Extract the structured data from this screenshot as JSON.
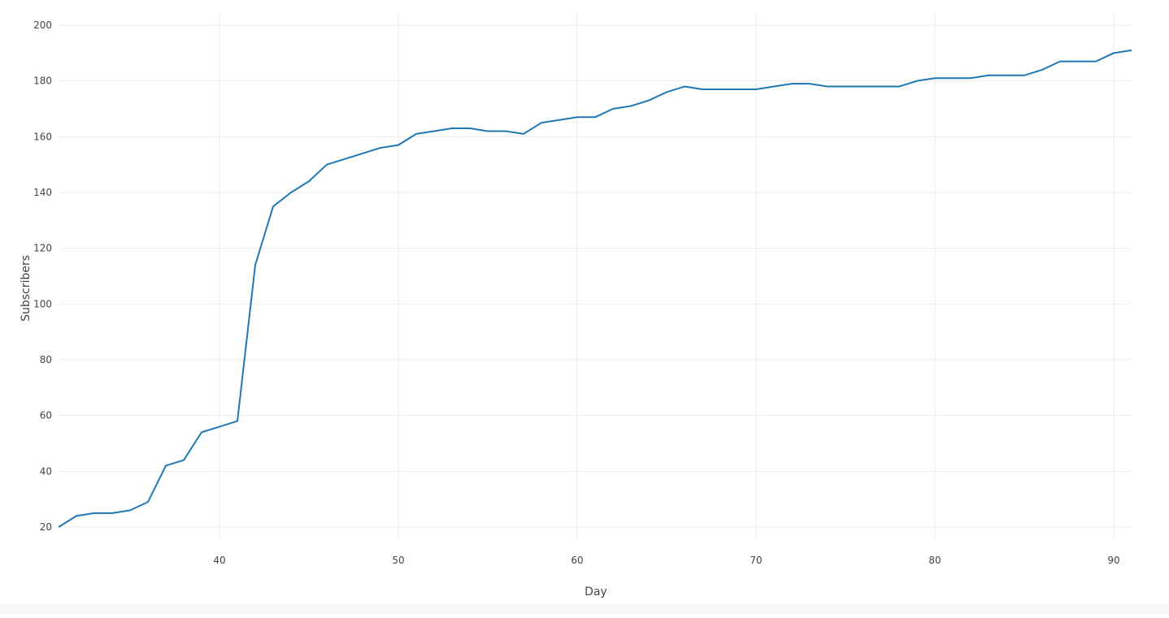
{
  "chart_data": {
    "type": "line",
    "title": "",
    "xlabel": "Day",
    "ylabel": "Subscribers",
    "xlim": [
      31,
      91
    ],
    "ylim": [
      12,
      202
    ],
    "x_ticks": [
      40,
      50,
      60,
      70,
      80,
      90
    ],
    "y_ticks": [
      20,
      40,
      60,
      80,
      100,
      120,
      140,
      160,
      180,
      200
    ],
    "grid": true,
    "legend": "none",
    "colors": {
      "line": "#1f77b4",
      "grid": "#ebebeb",
      "text": "#444444"
    },
    "series": [
      {
        "x": [
          31,
          32,
          33,
          34,
          35,
          36,
          37,
          38,
          39,
          40,
          41,
          42,
          43,
          44,
          45,
          46,
          47,
          48,
          49,
          50,
          51,
          52,
          53,
          54,
          55,
          56,
          57,
          58,
          59,
          60,
          61,
          62,
          63,
          64,
          65,
          66,
          67,
          68,
          69,
          70,
          71,
          72,
          73,
          74,
          75,
          76,
          77,
          78,
          79,
          80,
          81,
          82,
          83,
          84,
          85,
          86,
          87,
          88,
          89,
          90,
          91
        ],
        "values": [
          20,
          24,
          25,
          25,
          26,
          29,
          42,
          44,
          54,
          56,
          58,
          114,
          135,
          140,
          144,
          150,
          152,
          154,
          156,
          157,
          161,
          162,
          163,
          163,
          162,
          162,
          161,
          165,
          166,
          167,
          167,
          170,
          171,
          173,
          176,
          178,
          177,
          177,
          177,
          177,
          178,
          179,
          179,
          178,
          178,
          178,
          178,
          178,
          180,
          181,
          181,
          181,
          182,
          182,
          182,
          184,
          187,
          187,
          187,
          190,
          191
        ]
      }
    ]
  }
}
